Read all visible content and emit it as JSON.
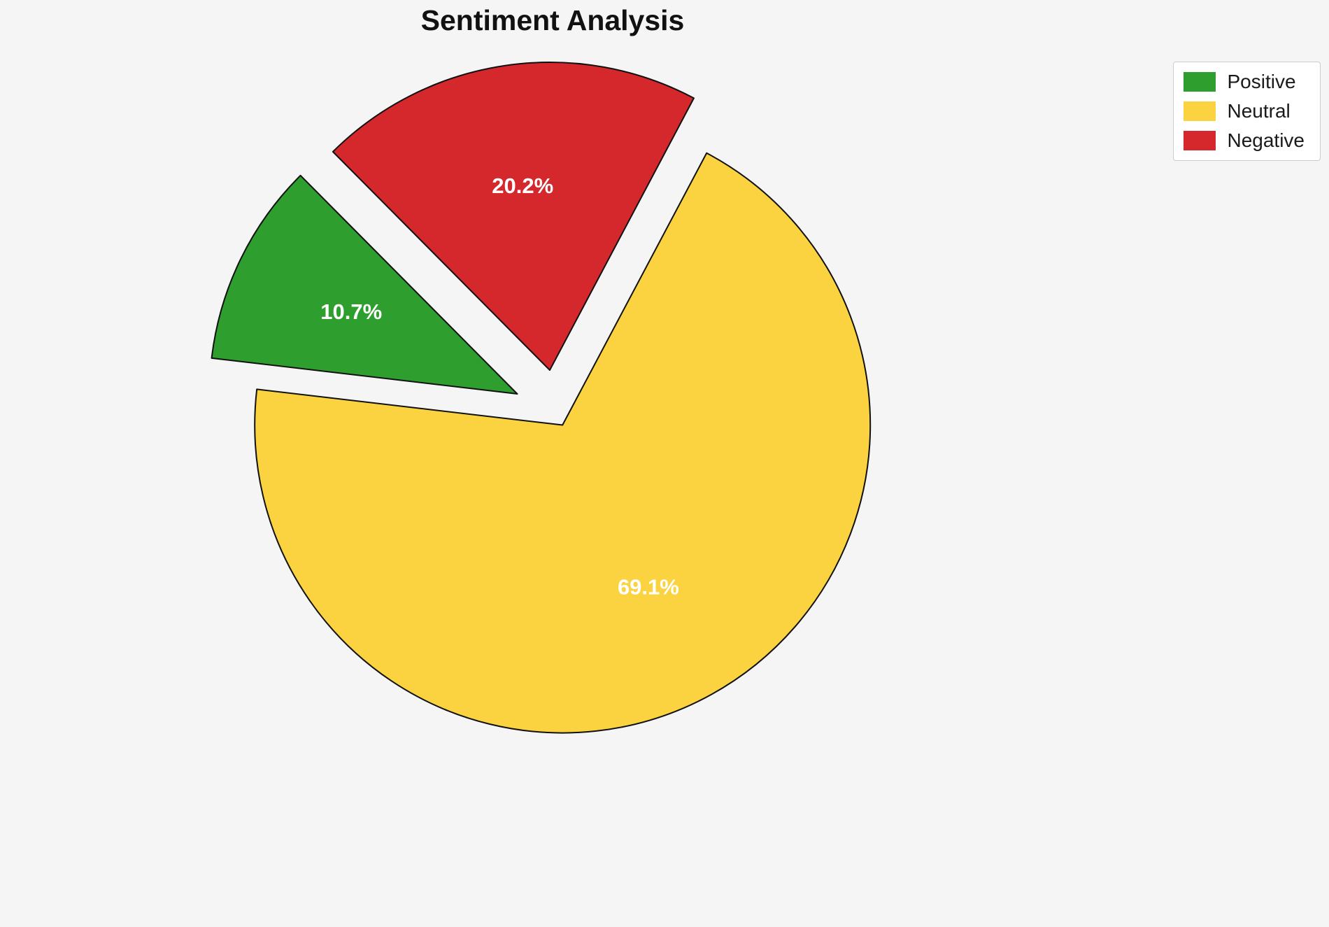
{
  "title": "Sentiment Analysis",
  "chart_data": {
    "type": "pie",
    "title": "Sentiment Analysis",
    "labels": [
      "Positive",
      "Neutral",
      "Negative"
    ],
    "values": [
      10.7,
      69.1,
      20.2
    ],
    "display_labels": [
      "10.7%",
      "69.1%",
      "20.2%"
    ],
    "colors": [
      "#2e9e2e",
      "#fbd341",
      "#d5282d"
    ],
    "edge_color": "#111111",
    "label_color": "#ffffff",
    "start_angle": 134.8,
    "counterclockwise": true,
    "explode": [
      0.14,
      0.045,
      0.14
    ],
    "pct_distance": 0.6,
    "legend_position": "upper right",
    "background": "#f5f5f5"
  },
  "legend": {
    "entries": [
      "Positive",
      "Neutral",
      "Negative"
    ]
  }
}
